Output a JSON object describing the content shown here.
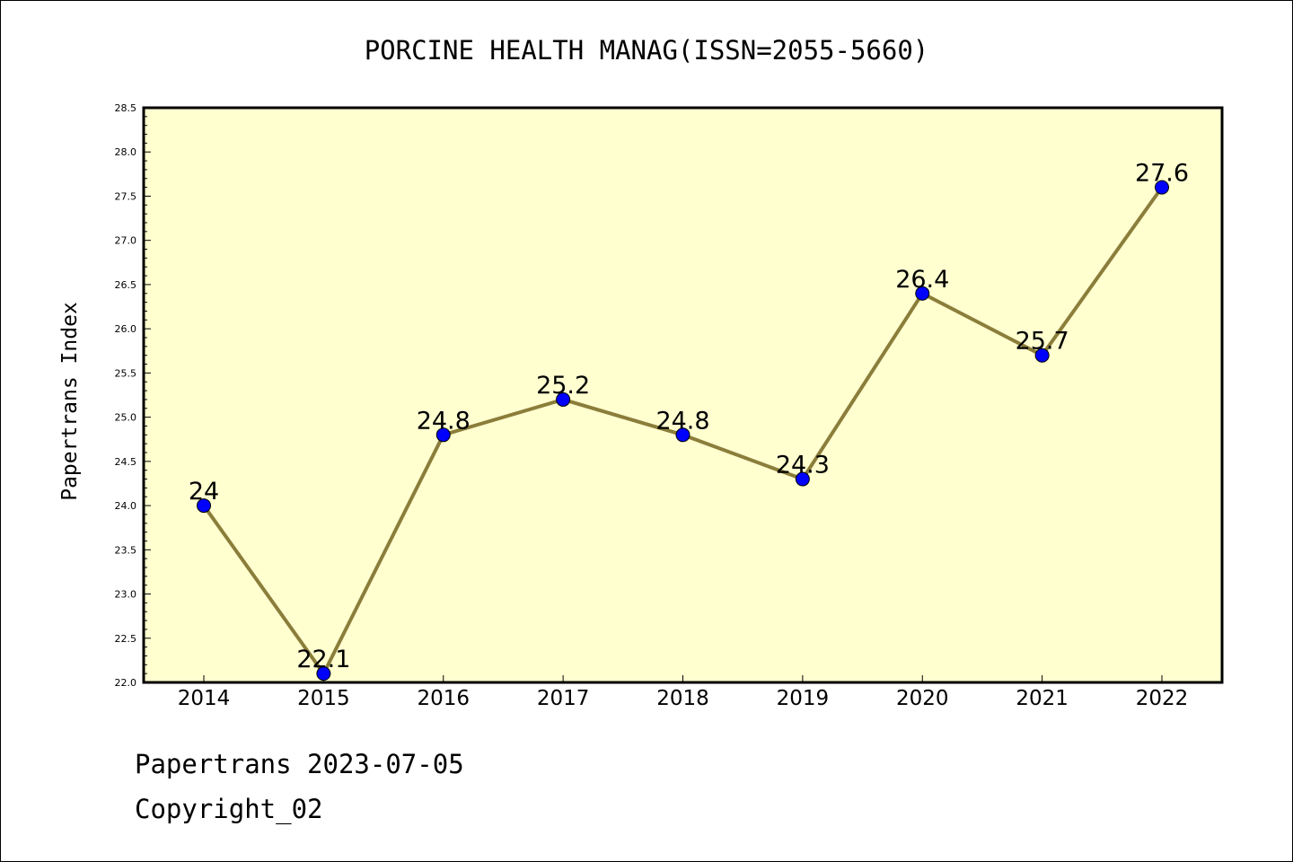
{
  "chart_data": {
    "type": "line",
    "title": "PORCINE HEALTH MANAG(ISSN=2055-5660)",
    "xlabel": "",
    "ylabel": "Papertrans Index",
    "categories": [
      "2014",
      "2015",
      "2016",
      "2017",
      "2018",
      "2019",
      "2020",
      "2021",
      "2022"
    ],
    "series": [
      {
        "values": [
          24,
          22.1,
          24.8,
          25.2,
          24.8,
          24.3,
          26.4,
          25.7,
          27.6
        ],
        "labels": [
          "24",
          "22.1",
          "24.8",
          "25.2",
          "24.8",
          "24.3",
          "26.4",
          "25.7",
          "27.6"
        ]
      }
    ],
    "ylim": [
      22.0,
      28.5
    ],
    "yticks": [
      22.0,
      22.5,
      23.0,
      23.5,
      24.0,
      24.5,
      25.0,
      25.5,
      26.0,
      26.5,
      27.0,
      27.5,
      28.0,
      28.5
    ],
    "ytick_labels": [
      "22.0",
      "22.5",
      "23.0",
      "23.5",
      "24.0",
      "24.5",
      "25.0",
      "25.5",
      "26.0",
      "26.5",
      "27.0",
      "27.5",
      "28.0",
      "28.5"
    ],
    "grid": false,
    "legend": "none",
    "colors": {
      "plot_background": "#ffffd0",
      "line": "#8b7d3a",
      "marker": "#0000ff",
      "axis": "#000000"
    }
  },
  "footer": {
    "date_line": "Papertrans 2023-07-05",
    "copyright_line": "Copyright_02"
  }
}
